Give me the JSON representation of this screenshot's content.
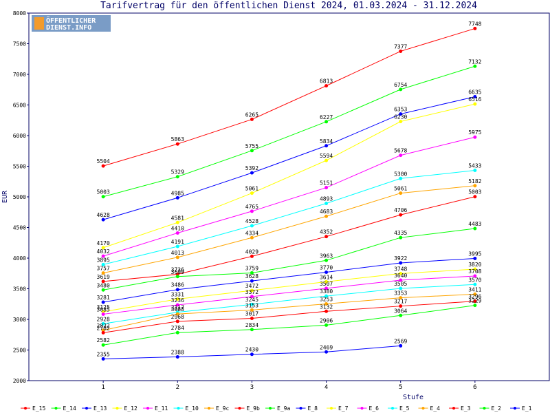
{
  "logo": {
    "line1": "ÖFFENTLICHER",
    "line2": "DIENST.INFO"
  },
  "chart_data": {
    "type": "line",
    "title": "Tarifvertrag für den öffentlichen Dienst 2024, 01.03.2024 - 31.12.2024",
    "xlabel": "Stufe",
    "ylabel": "EUR",
    "x": [
      1,
      2,
      3,
      4,
      5,
      6
    ],
    "xlim": [
      0,
      7
    ],
    "xticks": [
      1,
      2,
      3,
      4,
      5,
      6
    ],
    "ylim": [
      2000,
      8000
    ],
    "yticks": [
      2000,
      2500,
      3000,
      3500,
      4000,
      4500,
      5000,
      5500,
      6000,
      6500,
      7000,
      7500,
      8000
    ],
    "series": [
      {
        "name": "E_15",
        "color": "#ff0000",
        "values": [
          5504,
          5863,
          6265,
          6813,
          7377,
          7748
        ]
      },
      {
        "name": "E_14",
        "color": "#00ff00",
        "values": [
          5003,
          5329,
          5755,
          6227,
          6754,
          7132
        ]
      },
      {
        "name": "E_13",
        "color": "#0000ff",
        "values": [
          4628,
          4985,
          5392,
          5834,
          6353,
          6635
        ]
      },
      {
        "name": "E_12",
        "color": "#ffff00",
        "values": [
          4170,
          4581,
          5061,
          5594,
          6230,
          6516
        ]
      },
      {
        "name": "E_11",
        "color": "#ff00ff",
        "values": [
          4032,
          4410,
          4765,
          5151,
          5678,
          5975
        ]
      },
      {
        "name": "E_10",
        "color": "#00ffff",
        "values": [
          3895,
          4191,
          4528,
          4893,
          5300,
          5433
        ]
      },
      {
        "name": "E_9c",
        "color": "#ffa500",
        "values": [
          3757,
          4013,
          4334,
          4683,
          5061,
          5182
        ]
      },
      {
        "name": "E_9b",
        "color": "#ff0000",
        "values": [
          3619,
          3736,
          4029,
          4352,
          4706,
          5003
        ]
      },
      {
        "name": "E_9a",
        "color": "#00ff00",
        "values": [
          3480,
          3699,
          3759,
          3963,
          4335,
          4483
        ]
      },
      {
        "name": "E_8",
        "color": "#0000ff",
        "values": [
          3281,
          3486,
          3628,
          3770,
          3922,
          3995
        ]
      },
      {
        "name": "E_7",
        "color": "#ffff00",
        "values": [
          3125,
          3331,
          3472,
          3614,
          3748,
          3820
        ]
      },
      {
        "name": "E_6",
        "color": "#ff00ff",
        "values": [
          3085,
          3236,
          3372,
          3507,
          3640,
          3708
        ]
      },
      {
        "name": "E_5",
        "color": "#00ffff",
        "values": [
          2928,
          3117,
          3245,
          3380,
          3505,
          3570
        ]
      },
      {
        "name": "E_4",
        "color": "#ffa500",
        "values": [
          2822,
          3088,
          3153,
          3253,
          3353,
          3411
        ]
      },
      {
        "name": "E_3",
        "color": "#ff0000",
        "values": [
          2782,
          2968,
          3017,
          3132,
          3217,
          3296
        ]
      },
      {
        "name": "E_2",
        "color": "#00ff00",
        "values": [
          2582,
          2784,
          2834,
          2906,
          3064,
          3229
        ]
      },
      {
        "name": "E_1",
        "color": "#0000ff",
        "values": [
          2355,
          2388,
          2430,
          2469,
          2569,
          null
        ]
      }
    ]
  }
}
